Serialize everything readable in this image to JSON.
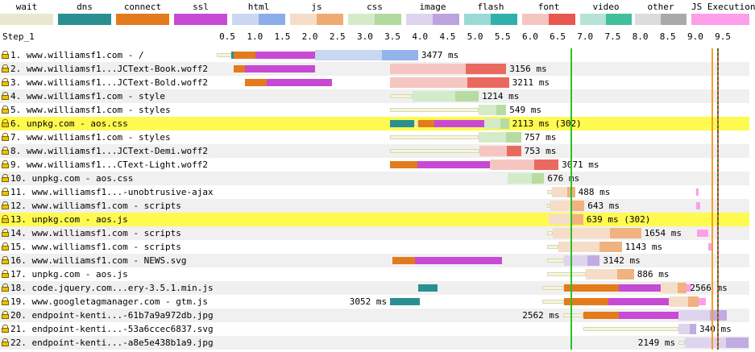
{
  "legend": [
    {
      "label": "wait",
      "colors": [
        "#f5f5dc",
        "#f5f5dc"
      ],
      "bar": "#e8e8cf"
    },
    {
      "label": "dns",
      "colors": [
        "#2a8f91",
        "#2a8f91"
      ]
    },
    {
      "label": "connect",
      "colors": [
        "#e37b1c",
        "#e37b1c"
      ]
    },
    {
      "label": "ssl",
      "colors": [
        "#c74ad4",
        "#c74ad4"
      ]
    },
    {
      "label": "html",
      "colors": [
        "#c9d7f0",
        "#8cadea"
      ]
    },
    {
      "label": "js",
      "colors": [
        "#f6ddc8",
        "#efaa72"
      ]
    },
    {
      "label": "css",
      "colors": [
        "#d4ebc9",
        "#b1d99b"
      ]
    },
    {
      "label": "image",
      "colors": [
        "#dfd4ee",
        "#bba4dd"
      ]
    },
    {
      "label": "flash",
      "colors": [
        "#9ad9d6",
        "#30b0ad"
      ]
    },
    {
      "label": "font",
      "colors": [
        "#f5c6c1",
        "#e8584e"
      ]
    },
    {
      "label": "video",
      "colors": [
        "#b5e3d6",
        "#3fbf9b"
      ]
    },
    {
      "label": "other",
      "colors": [
        "#dcdcdc",
        "#a9a9a9"
      ]
    },
    {
      "label": "JS Execution",
      "colors": [
        "#ff9ee8",
        "#ff9ee8"
      ]
    }
  ],
  "step_label": "Step_1",
  "axis_ticks": [
    "0.5",
    "1.0",
    "1.5",
    "2.0",
    "2.5",
    "3.0",
    "3.5",
    "4.0",
    "4.5",
    "5.0",
    "5.5",
    "6.0",
    "6.5",
    "7.0",
    "7.5",
    "8.0",
    "8.5",
    "9.0",
    "9.5"
  ],
  "colors": {
    "wait": "#f5f5dc",
    "wait_edge": "#d7d7b4",
    "dns": "#2a8f91",
    "connect": "#e37b1c",
    "ssl": "#c74ad4",
    "highlight": "#fffa50",
    "alt_row": "#f0f0f0",
    "start_render": "#28c228",
    "dom_content": "#f0a030",
    "on_load": "#2a7a2a"
  },
  "rows": [
    {
      "num": "1.",
      "label": "www.williamsf1.com - /",
      "time": "3477 ms",
      "type": "html",
      "highlight": false,
      "segs": [
        [
          "wait",
          0.3,
          0.55
        ],
        [
          "dns",
          0.55,
          0.6
        ],
        [
          "connect",
          0.6,
          1.0
        ],
        [
          "ssl",
          1.0,
          2.08
        ],
        [
          "req",
          2.08,
          3.95
        ]
      ]
    },
    {
      "num": "2.",
      "label": "www.williamsf1...JCText-Book.woff2",
      "time": "3156 ms",
      "type": "font",
      "highlight": false,
      "segs": [
        [
          "connect",
          0.6,
          0.8
        ],
        [
          "ssl",
          0.8,
          2.08
        ],
        [
          "req",
          3.44,
          5.55
        ]
      ]
    },
    {
      "num": "3.",
      "label": "www.williamsf1...JCText-Bold.woff2",
      "time": "3211 ms",
      "type": "font",
      "highlight": false,
      "segs": [
        [
          "connect",
          0.8,
          1.2
        ],
        [
          "ssl",
          1.2,
          2.38
        ],
        [
          "req",
          3.44,
          5.6
        ]
      ]
    },
    {
      "num": "4.",
      "label": "www.williamsf1.com - style",
      "time": "1214 ms",
      "type": "css",
      "highlight": false,
      "segs": [
        [
          "wait",
          3.44,
          3.85
        ],
        [
          "req",
          3.85,
          5.05
        ]
      ]
    },
    {
      "num": "5.",
      "label": "www.williamsf1.com - styles",
      "time": "549 ms",
      "type": "css",
      "highlight": false,
      "segs": [
        [
          "wait",
          3.44,
          5.05
        ],
        [
          "req",
          5.05,
          5.55
        ]
      ]
    },
    {
      "num": "6.",
      "label": "unpkg.com - aos.css",
      "time": "2113 ms (302)",
      "type": "css",
      "highlight": true,
      "segs": [
        [
          "dns",
          3.44,
          3.88
        ],
        [
          "wait",
          3.88,
          3.95
        ],
        [
          "connect",
          3.95,
          4.25
        ],
        [
          "ssl",
          4.25,
          5.15
        ],
        [
          "req",
          5.15,
          5.6
        ]
      ]
    },
    {
      "num": "7.",
      "label": "www.williamsf1.com - styles",
      "time": "757 ms",
      "type": "css",
      "highlight": false,
      "segs": [
        [
          "wait",
          3.44,
          5.05
        ],
        [
          "req",
          5.05,
          5.82
        ]
      ]
    },
    {
      "num": "8.",
      "label": "www.williamsf1...JCText-Demi.woff2",
      "time": "753 ms",
      "type": "font",
      "highlight": false,
      "segs": [
        [
          "wait",
          3.44,
          5.07
        ],
        [
          "req",
          5.07,
          5.82
        ]
      ]
    },
    {
      "num": "9.",
      "label": "www.williamsf1...CText-Light.woff2",
      "time": "3071 ms",
      "type": "font",
      "highlight": false,
      "segs": [
        [
          "connect",
          3.44,
          3.93
        ],
        [
          "ssl",
          3.93,
          5.25
        ],
        [
          "req",
          5.25,
          6.5
        ]
      ]
    },
    {
      "num": "10.",
      "label": "unpkg.com - aos.css",
      "time": "676 ms",
      "type": "css",
      "highlight": false,
      "segs": [
        [
          "req",
          5.58,
          6.24
        ]
      ]
    },
    {
      "num": "11.",
      "label": "www.williamsf1...-unobtrusive-ajax",
      "time": "488 ms",
      "type": "js",
      "highlight": false,
      "segs": [
        [
          "wait",
          6.3,
          6.38
        ],
        [
          "req",
          6.38,
          6.8
        ]
      ],
      "js": [
        [
          9.0,
          9.05
        ]
      ]
    },
    {
      "num": "12.",
      "label": "www.williamsf1.com - scripts",
      "time": "643 ms",
      "type": "js",
      "highlight": false,
      "segs": [
        [
          "wait",
          6.3,
          6.35
        ],
        [
          "req",
          6.35,
          6.97
        ]
      ],
      "js": [
        [
          9.0,
          9.08
        ]
      ]
    },
    {
      "num": "13.",
      "label": "unpkg.com - aos.js",
      "time": "639 ms (302)",
      "type": "js",
      "highlight": true,
      "segs": [
        [
          "req",
          6.32,
          6.95
        ]
      ]
    },
    {
      "num": "14.",
      "label": "www.williamsf1.com - scripts",
      "time": "1654 ms",
      "type": "js",
      "highlight": false,
      "segs": [
        [
          "wait",
          6.3,
          6.4
        ],
        [
          "req",
          6.4,
          8.0
        ]
      ],
      "js": [
        [
          9.02,
          9.22
        ]
      ]
    },
    {
      "num": "15.",
      "label": "www.williamsf1.com - scripts",
      "time": "1143 ms",
      "type": "js",
      "highlight": false,
      "segs": [
        [
          "wait",
          6.3,
          6.5
        ],
        [
          "req",
          6.5,
          7.65
        ]
      ],
      "js": [
        [
          9.22,
          9.28
        ]
      ]
    },
    {
      "num": "16.",
      "label": "www.williamsf1.com - NEWS.svg",
      "time": "3142 ms",
      "type": "image",
      "highlight": false,
      "segs": [
        [
          "connect",
          3.48,
          3.9
        ],
        [
          "ssl",
          3.9,
          5.48
        ],
        [
          "wait",
          6.3,
          6.6
        ],
        [
          "req",
          6.6,
          7.25
        ]
      ]
    },
    {
      "num": "17.",
      "label": "unpkg.com - aos.js",
      "time": "886 ms",
      "type": "js",
      "highlight": false,
      "segs": [
        [
          "wait",
          6.3,
          7.0
        ],
        [
          "req",
          7.0,
          7.87
        ]
      ]
    },
    {
      "num": "18.",
      "label": "code.jquery.com...ery-3.5.1.min.js",
      "time": "2566 ms",
      "type": "js",
      "highlight": false,
      "segs": [
        [
          "dns",
          3.95,
          4.3
        ],
        [
          "wait",
          6.2,
          6.6
        ],
        [
          "connect",
          6.6,
          7.6
        ],
        [
          "ssl",
          7.6,
          8.35
        ],
        [
          "req",
          8.35,
          8.83
        ]
      ],
      "js": [
        [
          8.83,
          8.92
        ]
      ]
    },
    {
      "num": "19.",
      "label": "www.googletagmanager.com - gtm.js",
      "time": "3052 ms",
      "type": "js",
      "highlight": false,
      "time_left": true,
      "segs": [
        [
          "dns",
          3.44,
          3.98
        ],
        [
          "wait",
          6.2,
          6.6
        ],
        [
          "connect",
          6.6,
          7.4
        ],
        [
          "ssl",
          7.4,
          8.5
        ],
        [
          "req",
          8.5,
          9.05
        ]
      ],
      "js": [
        [
          9.05,
          9.18
        ]
      ]
    },
    {
      "num": "20.",
      "label": "endpoint-kenti...-61b7a9a972db.jpg",
      "time": "2562 ms",
      "type": "image",
      "highlight": false,
      "time_left": true,
      "segs": [
        [
          "wait",
          6.58,
          6.95
        ],
        [
          "connect",
          6.95,
          7.6
        ],
        [
          "ssl",
          7.6,
          8.68
        ],
        [
          "req",
          8.68,
          9.55
        ]
      ]
    },
    {
      "num": "21.",
      "label": "endpoint-kenti...-53a6ccec6837.svg",
      "time": "340 ms",
      "type": "image",
      "highlight": false,
      "segs": [
        [
          "wait",
          6.95,
          8.68
        ],
        [
          "req",
          8.68,
          9.0
        ]
      ]
    },
    {
      "num": "22.",
      "label": "endpoint-kenti...-a8e5e438b1a9.jpg",
      "time": "2149 ms",
      "type": "image",
      "highlight": false,
      "time_left": true,
      "segs": [
        [
          "wait",
          8.68,
          8.8
        ],
        [
          "req",
          8.8,
          9.95
        ]
      ]
    }
  ],
  "markers": {
    "start_render": 6.72,
    "dom_content": 9.28,
    "on_load": 9.38
  }
}
